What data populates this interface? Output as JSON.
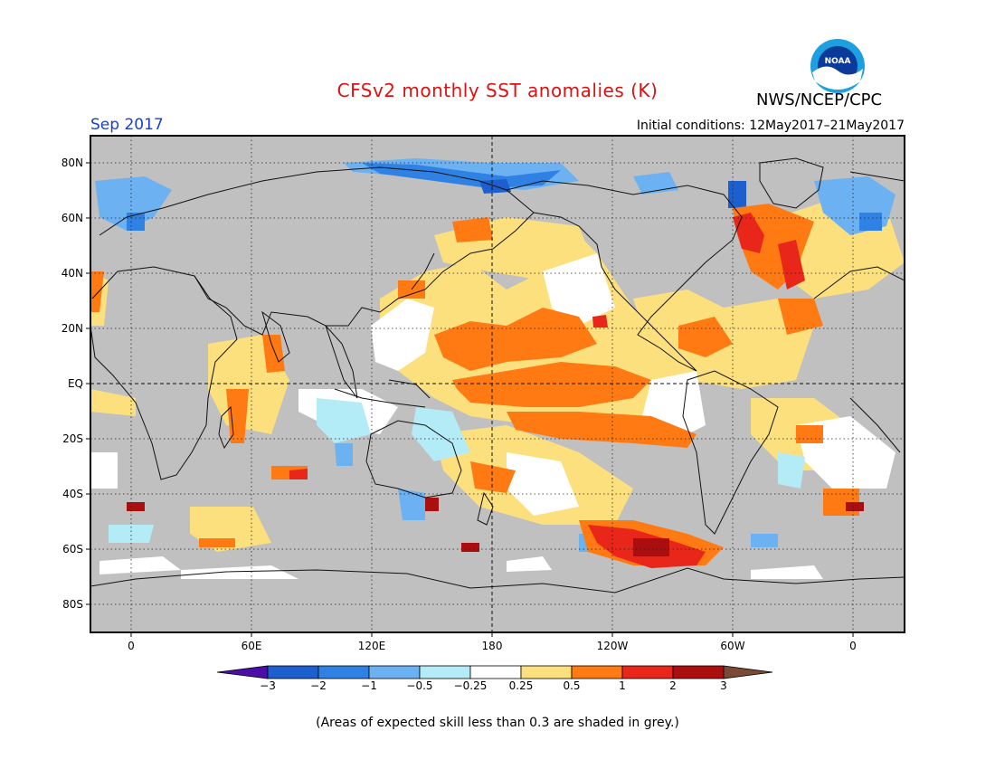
{
  "header": {
    "title": "CFSv2 monthly SST anomalies (K)",
    "agency": "NWS/NCEP/CPC",
    "logo_text": "NOAA",
    "target_month": "Sep 2017",
    "initial_conditions": "Initial conditions: 12May2017–21May2017"
  },
  "map": {
    "lat_labels": [
      "80N",
      "60N",
      "40N",
      "20N",
      "EQ",
      "20S",
      "40S",
      "60S",
      "80S"
    ],
    "lon_labels": [
      "0",
      "60E",
      "120E",
      "180",
      "120W",
      "60W",
      "0"
    ],
    "land_color": "#c0c0c0"
  },
  "colorbar": {
    "tick_labels": [
      "−3",
      "−2",
      "−1",
      "−0.5",
      "−0.25",
      "0.25",
      "0.5",
      "1",
      "2",
      "3"
    ],
    "colors": [
      "#4b0ea8",
      "#1d5fcf",
      "#2f82e3",
      "#6cb2f2",
      "#b3ecf7",
      "#ffffff",
      "#fde07e",
      "#ff7a12",
      "#e8261a",
      "#aa0e0e",
      "#7a4a35"
    ]
  },
  "footnote": "(Areas of expected skill less than 0.3 are shaded in grey.)"
}
